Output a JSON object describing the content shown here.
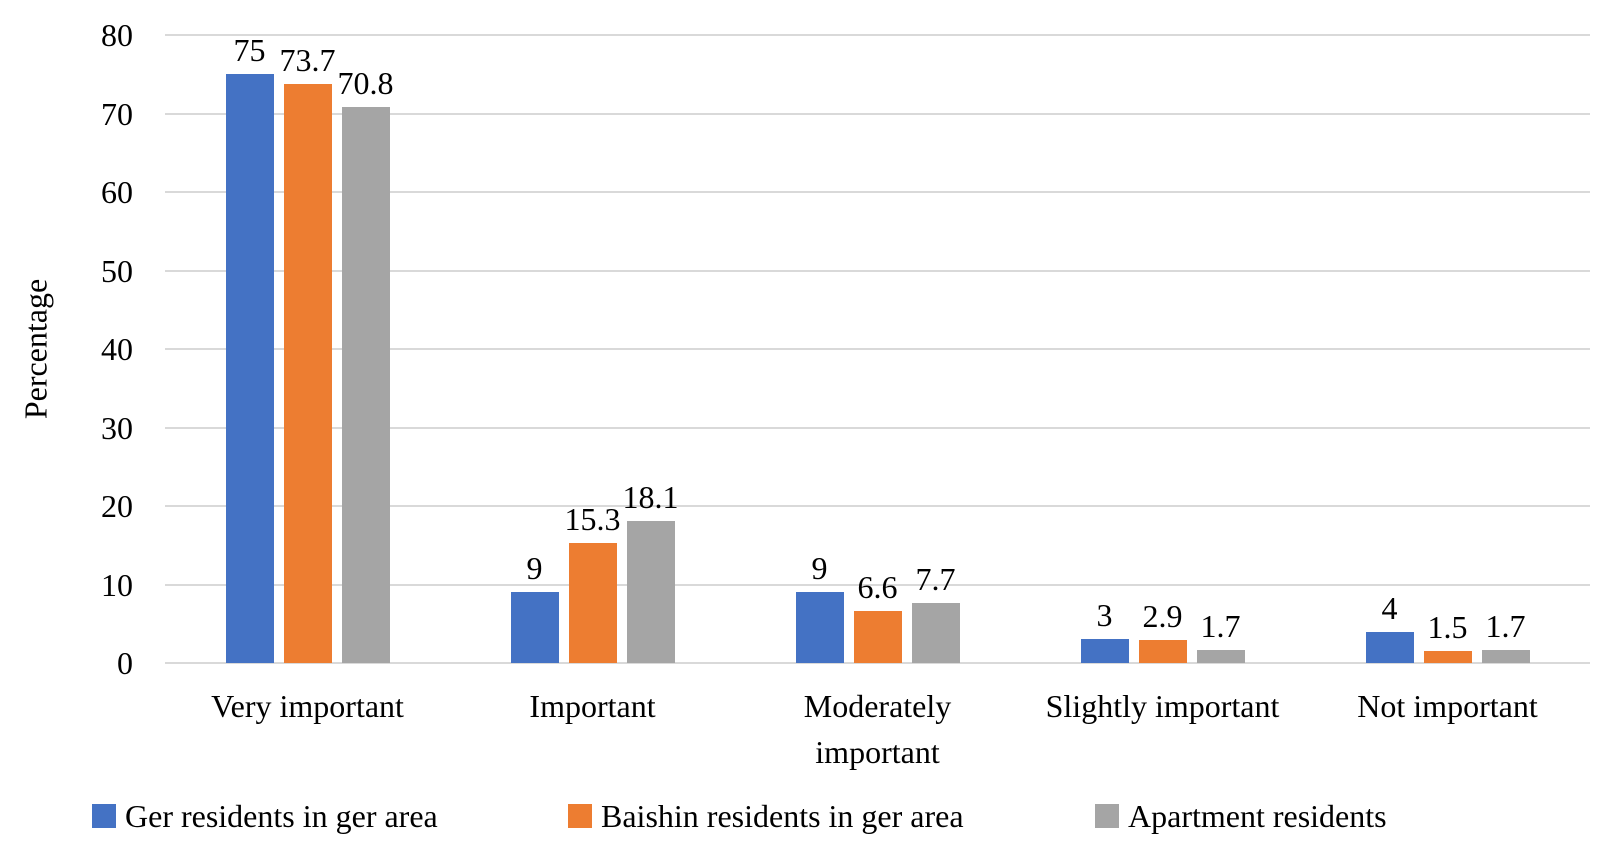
{
  "chart_data": {
    "type": "bar",
    "title": "",
    "ylabel": "Percentage",
    "xlabel": "",
    "ylim": [
      0,
      80
    ],
    "yticks": [
      0,
      10,
      20,
      30,
      40,
      50,
      60,
      70,
      80
    ],
    "grid": true,
    "grid_color": "#D9D9D9",
    "text_color": "#000000",
    "legend_position": "bottom",
    "categories": [
      {
        "label": "Very important",
        "lines": [
          "Very important"
        ]
      },
      {
        "label": "Important",
        "lines": [
          "Important"
        ]
      },
      {
        "label": "Moderately important",
        "lines": [
          "Moderately",
          "important"
        ]
      },
      {
        "label": "Slightly important",
        "lines": [
          "Slightly important"
        ]
      },
      {
        "label": "Not important",
        "lines": [
          "Not important"
        ]
      }
    ],
    "series": [
      {
        "name": "Ger residents in ger area",
        "color": "#4472C4",
        "values": [
          75,
          9,
          9,
          3,
          4
        ],
        "labels": [
          "75",
          "9",
          "9",
          "3",
          "4"
        ]
      },
      {
        "name": "Baishin residents in ger area",
        "color": "#ED7D31",
        "values": [
          73.7,
          15.3,
          6.6,
          2.9,
          1.5
        ],
        "labels": [
          "73.7",
          "15.3",
          "6.6",
          "2.9",
          "1.5"
        ]
      },
      {
        "name": "Apartment residents",
        "color": "#A5A5A5",
        "values": [
          70.8,
          18.1,
          7.7,
          1.7,
          1.7
        ],
        "labels": [
          "70.8",
          "18.1",
          "7.7",
          "1.7",
          "1.7"
        ]
      }
    ]
  }
}
